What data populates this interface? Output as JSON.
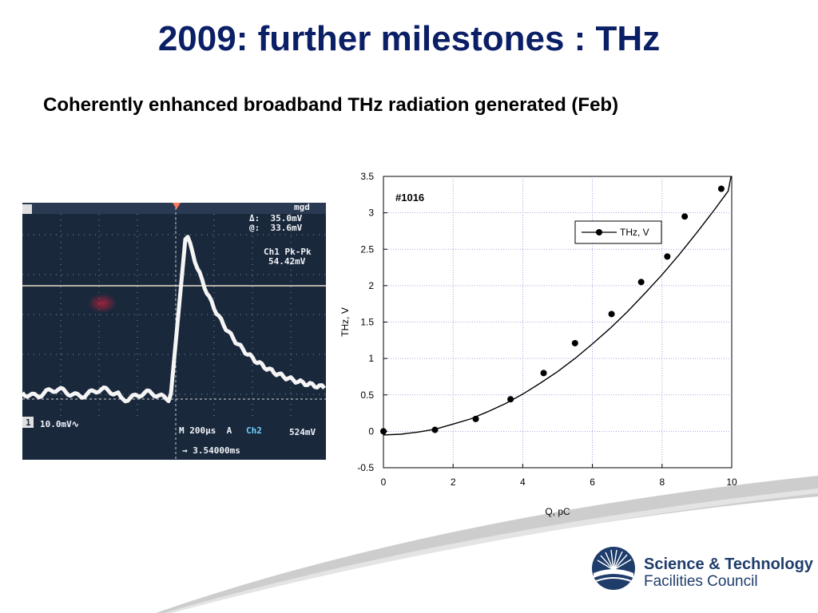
{
  "slide": {
    "title": "2009: further milestones : THz",
    "subtitle": "Coherently enhanced broadband THz radiation generated (Feb)"
  },
  "scope": {
    "top_label": "mgd",
    "delta_label": "Δ:  35.0mV",
    "at_label": "@:  33.6mV",
    "pkpk_label": "Ch1 Pk-Pk",
    "pkpk_value": "54.42mV",
    "ch1_scale": "10.0mV∿",
    "timebase": "M 200µs  A",
    "trigger_ch": "Ch2",
    "trigger_level": "524mV",
    "cursor_time": "→ 3.54000ms",
    "ch1_marker": "1"
  },
  "chart_data": {
    "type": "scatter",
    "annotation": "#1016",
    "xlabel": "Q, pC",
    "ylabel": "THz, V",
    "xlim": [
      0,
      10
    ],
    "ylim": [
      -0.5,
      3.5
    ],
    "xticks": [
      0,
      2,
      4,
      6,
      8,
      10
    ],
    "yticks": [
      -0.5,
      0,
      0.5,
      1,
      1.5,
      2,
      2.5,
      3,
      3.5
    ],
    "grid": true,
    "legend_position": "top-right",
    "series": [
      {
        "name": "THz, V",
        "x": [
          0,
          1.48,
          2.65,
          3.65,
          4.6,
          5.5,
          6.55,
          7.4,
          8.15,
          8.65,
          9.7
        ],
        "y": [
          0.0,
          0.02,
          0.17,
          0.44,
          0.8,
          1.21,
          1.61,
          2.05,
          2.4,
          2.95,
          3.33
        ]
      }
    ],
    "fit": {
      "x": [
        0,
        0.5,
        1,
        1.5,
        2,
        2.5,
        3,
        3.5,
        4,
        4.5,
        5,
        5.5,
        6,
        6.5,
        7,
        7.5,
        8,
        8.5,
        9,
        9.5,
        9.9
      ],
      "y": [
        -0.05,
        -0.04,
        -0.01,
        0.03,
        0.1,
        0.17,
        0.27,
        0.38,
        0.51,
        0.66,
        0.82,
        1.0,
        1.2,
        1.41,
        1.64,
        1.89,
        2.15,
        2.43,
        2.73,
        3.04,
        3.3
      ]
    }
  },
  "logo": {
    "line1": "Science & Technology",
    "line2": "Facilities Council"
  },
  "colors": {
    "title": "#0b1f66",
    "grid": "#8a8ad6",
    "logo": "#1f3d6b"
  }
}
